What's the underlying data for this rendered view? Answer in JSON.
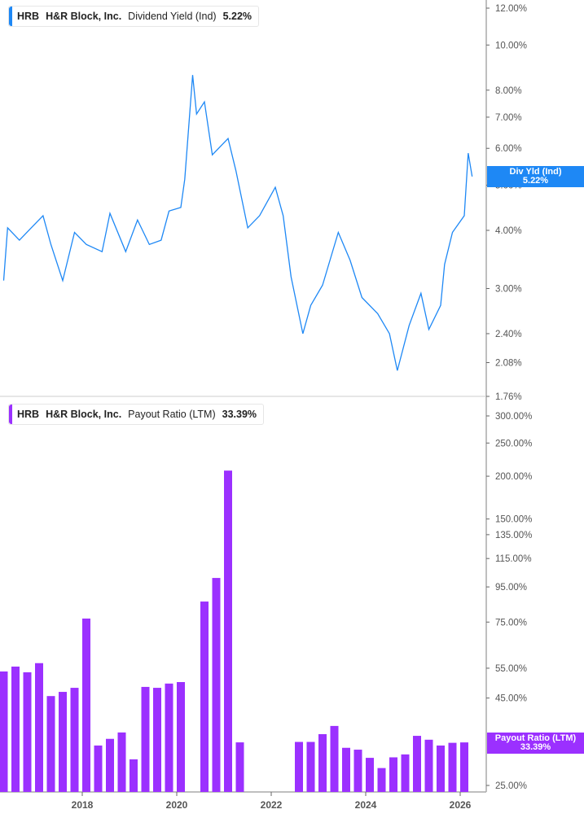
{
  "colors": {
    "yield": "#1e88f5",
    "payout": "#9b30ff",
    "axis": "#aaaaaa"
  },
  "top_legend": {
    "ticker": "HRB",
    "company": "H&R Block, Inc.",
    "metric": "Dividend Yield (Ind)",
    "value": "5.22%"
  },
  "top_badge": {
    "label": "Div Yld (Ind)",
    "value": "5.22%"
  },
  "bottom_legend": {
    "ticker": "HRB",
    "company": "H&R Block, Inc.",
    "metric": "Payout Ratio (LTM)",
    "value": "33.39%"
  },
  "bottom_badge": {
    "label": "Payout Ratio (LTM)",
    "value": "33.39%"
  },
  "chart_data": [
    {
      "type": "line",
      "scale": "log",
      "ylim": [
        1.76,
        12
      ],
      "unit": "%",
      "yticks": [
        12,
        10,
        8,
        7,
        6,
        5,
        4,
        3,
        2.4,
        2.08,
        1.76
      ],
      "ytick_labels": [
        "12.00%",
        "10.00%",
        "8.00%",
        "7.00%",
        "6.00%",
        "5.00%",
        "4.00%",
        "3.00%",
        "2.40%",
        "2.08%",
        "1.76%"
      ],
      "series": [
        {
          "name": "Dividend Yield (Ind)",
          "points": [
            [
              "2016-04",
              3.12
            ],
            [
              "2016-05",
              4.05
            ],
            [
              "2016-08",
              3.81
            ],
            [
              "2016-11",
              4.05
            ],
            [
              "2017-02",
              4.3
            ],
            [
              "2017-04",
              3.73
            ],
            [
              "2017-07",
              3.12
            ],
            [
              "2017-10",
              3.96
            ],
            [
              "2018-01",
              3.73
            ],
            [
              "2018-05",
              3.6
            ],
            [
              "2018-07",
              4.35
            ],
            [
              "2018-11",
              3.6
            ],
            [
              "2019-02",
              4.21
            ],
            [
              "2019-05",
              3.73
            ],
            [
              "2019-08",
              3.81
            ],
            [
              "2019-10",
              4.4
            ],
            [
              "2020-01",
              4.48
            ],
            [
              "2020-02",
              5.15
            ],
            [
              "2020-04",
              8.62
            ],
            [
              "2020-05",
              7.11
            ],
            [
              "2020-07",
              7.55
            ],
            [
              "2020-09",
              5.81
            ],
            [
              "2021-01",
              6.3
            ],
            [
              "2021-03",
              5.37
            ],
            [
              "2021-06",
              4.05
            ],
            [
              "2021-09",
              4.3
            ],
            [
              "2022-01",
              4.95
            ],
            [
              "2022-03",
              4.3
            ],
            [
              "2022-05",
              3.18
            ],
            [
              "2022-08",
              2.4
            ],
            [
              "2022-10",
              2.76
            ],
            [
              "2023-01",
              3.05
            ],
            [
              "2023-05",
              3.96
            ],
            [
              "2023-08",
              3.45
            ],
            [
              "2023-11",
              2.87
            ],
            [
              "2024-03",
              2.65
            ],
            [
              "2024-06",
              2.4
            ],
            [
              "2024-08",
              2.0
            ],
            [
              "2024-11",
              2.5
            ],
            [
              "2025-02",
              2.93
            ],
            [
              "2025-04",
              2.45
            ],
            [
              "2025-07",
              2.76
            ],
            [
              "2025-08",
              3.38
            ],
            [
              "2025-10",
              3.96
            ],
            [
              "2026-01",
              4.3
            ],
            [
              "2026-02",
              5.86
            ],
            [
              "2026-03",
              5.22
            ]
          ]
        }
      ]
    },
    {
      "type": "bar",
      "scale": "log",
      "ylim": [
        25,
        300
      ],
      "unit": "%",
      "yticks": [
        300,
        250,
        200,
        150,
        135,
        115,
        95,
        75,
        55,
        45,
        25
      ],
      "ytick_labels": [
        "300.00%",
        "250.00%",
        "200.00%",
        "150.00%",
        "135.00%",
        "115.00%",
        "95.00%",
        "75.00%",
        "55.00%",
        "45.00%",
        "25.00%"
      ],
      "xticks": [
        "2018",
        "2020",
        "2022",
        "2024",
        "2026"
      ],
      "series": [
        {
          "name": "Payout Ratio (LTM)",
          "points": [
            [
              "2016-04",
              53.8
            ],
            [
              "2016-07",
              55.6
            ],
            [
              "2016-10",
              53.5
            ],
            [
              "2017-01",
              56.9
            ],
            [
              "2017-04",
              45.6
            ],
            [
              "2017-07",
              46.9
            ],
            [
              "2017-10",
              48.2
            ],
            [
              "2018-01",
              76.8
            ],
            [
              "2018-04",
              32.7
            ],
            [
              "2018-07",
              34.2
            ],
            [
              "2018-10",
              35.7
            ],
            [
              "2019-01",
              29.8
            ],
            [
              "2019-04",
              48.5
            ],
            [
              "2019-07",
              48.2
            ],
            [
              "2019-10",
              49.6
            ],
            [
              "2020-01",
              50.1
            ],
            [
              "2020-04",
              null
            ],
            [
              "2020-07",
              86.1
            ],
            [
              "2020-10",
              100.9
            ],
            [
              "2021-01",
              207.7
            ],
            [
              "2021-04",
              33.4
            ],
            [
              "2021-07",
              null
            ],
            [
              "2021-10",
              null
            ],
            [
              "2022-01",
              null
            ],
            [
              "2022-04",
              null
            ],
            [
              "2022-07",
              33.5
            ],
            [
              "2022-10",
              33.5
            ],
            [
              "2023-01",
              35.3
            ],
            [
              "2023-04",
              37.3
            ],
            [
              "2023-07",
              32.2
            ],
            [
              "2023-10",
              31.8
            ],
            [
              "2024-01",
              30.1
            ],
            [
              "2024-04",
              28.1
            ],
            [
              "2024-07",
              30.2
            ],
            [
              "2024-10",
              30.8
            ],
            [
              "2025-01",
              34.9
            ],
            [
              "2025-04",
              34.0
            ],
            [
              "2025-07",
              32.7
            ],
            [
              "2025-10",
              33.3
            ],
            [
              "2026-01",
              33.39
            ]
          ]
        }
      ]
    }
  ]
}
